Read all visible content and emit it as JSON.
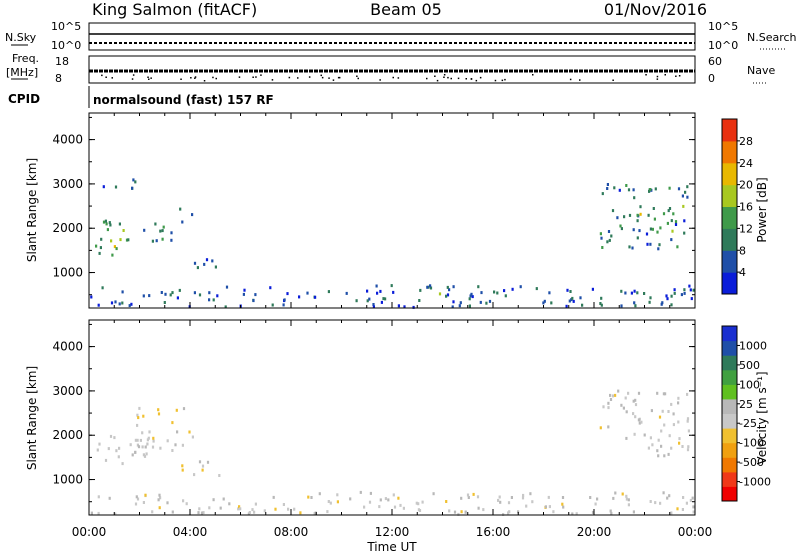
{
  "header": {
    "station": "King Salmon (fitACF)",
    "beam": "Beam 05",
    "date": "01/Nov/2016"
  },
  "status_panels": {
    "nsky_label": "N.Sky",
    "nsky_ticks": [
      "10^5",
      "10^0"
    ],
    "nsearch_label": "N.Search",
    "nsearch_ticks": [
      "10^5",
      "10^0"
    ],
    "freq_label_1": "Freq.",
    "freq_label_2": "[MHz]",
    "freq_ticks": [
      "18",
      "8"
    ],
    "nave_label": "Nave",
    "nave_ticks": [
      "60",
      "0"
    ],
    "cpid_label": "CPID",
    "cpid_text": "normalsound (fast) 157 RF"
  },
  "colors": {
    "power": [
      "#0a1dd9",
      "#1f4fa8",
      "#2f7a5a",
      "#3f9a4a",
      "#a8c820",
      "#e8b800",
      "#f07800",
      "#e83010"
    ],
    "velocity": [
      "#f00000",
      "#f03818",
      "#f07800",
      "#f0a010",
      "#f0c030",
      "#c8c8c8",
      "#b8b8b8",
      "#60c020",
      "#40a040",
      "#2f7a5a",
      "#1f4fa8",
      "#1a2fd0"
    ],
    "ground_scatter": "#c6c6c6"
  },
  "chart_data": [
    {
      "type": "heatmap",
      "panel": "power",
      "x": [
        "00:00",
        "04:00",
        "08:00",
        "12:00",
        "16:00",
        "20:00",
        "00:00"
      ],
      "ylabel": "Slant Range [km]",
      "yticks": [
        "4000",
        "3000",
        "2000",
        "1000"
      ],
      "ylim": [
        200,
        4600
      ],
      "colorbar": {
        "label": "Power [dB]",
        "ticks": [
          "28",
          "24",
          "20",
          "16",
          "12",
          "8",
          "4"
        ],
        "range": [
          0,
          30
        ]
      },
      "regions": [
        {
          "t": [
            0.0,
            1.5
          ],
          "r": [
            1300,
            2200
          ],
          "power": 14
        },
        {
          "t": [
            1.5,
            3.5
          ],
          "r": [
            1600,
            2100
          ],
          "power": 8
        },
        {
          "t": [
            3.5,
            4.2
          ],
          "r": [
            1800,
            2500
          ],
          "power": 6
        },
        {
          "t": [
            4.0,
            5.2
          ],
          "r": [
            1000,
            1400
          ],
          "power": 6
        },
        {
          "t": [
            0.5,
            1.8
          ],
          "r": [
            2800,
            3100
          ],
          "power": 6
        },
        {
          "t": [
            13.2,
            14.2
          ],
          "r": [
            450,
            650
          ],
          "power": 14
        },
        {
          "t": [
            0.0,
            24.0
          ],
          "r": [
            200,
            700
          ],
          "power": 6
        },
        {
          "t": [
            20.2,
            23.8
          ],
          "r": [
            1500,
            3000
          ],
          "power": 8
        },
        {
          "t": [
            21.5,
            23.5
          ],
          "r": [
            1900,
            2500
          ],
          "power": 14
        }
      ]
    },
    {
      "type": "heatmap",
      "panel": "velocity",
      "x": [
        "00:00",
        "04:00",
        "08:00",
        "12:00",
        "16:00",
        "20:00",
        "00:00"
      ],
      "xlabel": "Time UT",
      "ylabel": "Slant Range [km]",
      "yticks": [
        "4000",
        "3000",
        "2000",
        "1000"
      ],
      "ylim": [
        200,
        4600
      ],
      "colorbar": {
        "label": "Velocity [m s⁻¹]",
        "ticks": [
          "1000",
          "500",
          "100",
          "25",
          "-25",
          "-100",
          "-500",
          "-1000"
        ],
        "range": [
          -1000,
          1000
        ]
      },
      "regions": [
        {
          "t": [
            0.0,
            2.8
          ],
          "r": [
            1300,
            2000
          ],
          "velocity": 0,
          "ground_scatter": true
        },
        {
          "t": [
            1.5,
            4.2
          ],
          "r": [
            1600,
            2600
          ],
          "velocity": -60
        },
        {
          "t": [
            3.3,
            4.0
          ],
          "r": [
            1200,
            1450
          ],
          "velocity": -200
        },
        {
          "t": [
            4.0,
            5.2
          ],
          "r": [
            1000,
            1400
          ],
          "velocity": -120
        },
        {
          "t": [
            13.2,
            14.2
          ],
          "r": [
            450,
            650
          ],
          "velocity": 80
        },
        {
          "t": [
            0.0,
            24.0
          ],
          "r": [
            200,
            700
          ],
          "velocity": -40
        },
        {
          "t": [
            20.2,
            23.8
          ],
          "r": [
            1500,
            3000
          ],
          "velocity": -30
        }
      ]
    }
  ]
}
